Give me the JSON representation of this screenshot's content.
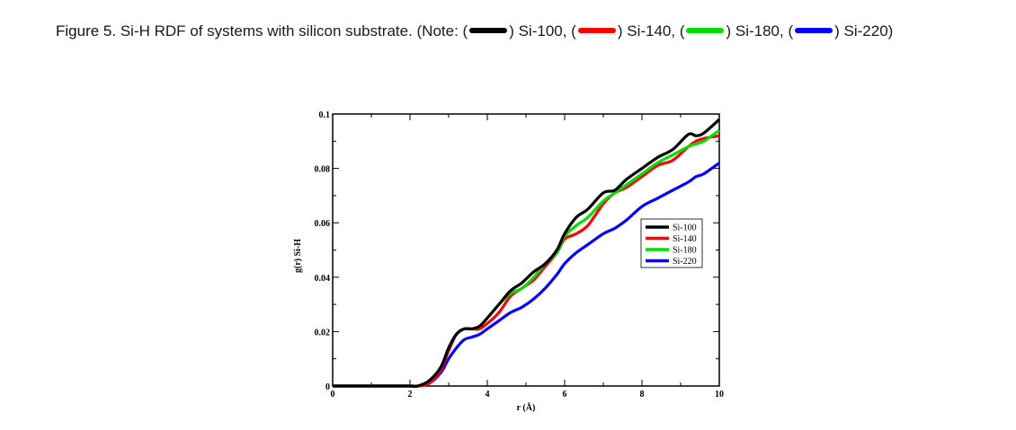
{
  "caption": {
    "label": "Figure 5.",
    "text": "Si-H RDF of systems with silicon substrate. (Note:",
    "items": [
      {
        "name": "Si-100",
        "color": "#000000"
      },
      {
        "name": "Si-140",
        "color": "#ff0000"
      },
      {
        "name": "Si-180",
        "color": "#00dd00"
      },
      {
        "name": "Si-220",
        "color": "#0000ff"
      }
    ]
  },
  "chart_data": {
    "type": "line",
    "xlabel": "r (Å)",
    "ylabel": "g(r) Si-H",
    "xlim": [
      0,
      10
    ],
    "ylim": [
      0,
      0.1
    ],
    "xticks": [
      "0",
      "2",
      "4",
      "6",
      "8",
      "10"
    ],
    "yticks": [
      "0",
      "0.02",
      "0.04",
      "0.06",
      "0.08",
      "0.1"
    ],
    "legend_position": "center-right",
    "x": [
      0,
      1,
      2,
      2.2,
      2.5,
      2.8,
      3.0,
      3.2,
      3.4,
      3.6,
      3.8,
      4.0,
      4.3,
      4.6,
      4.9,
      5.2,
      5.5,
      5.8,
      6.0,
      6.3,
      6.6,
      7.0,
      7.3,
      7.6,
      8.0,
      8.4,
      8.8,
      9.2,
      9.4,
      9.6,
      10.0
    ],
    "series": [
      {
        "name": "Si-100",
        "color": "#000000",
        "values": [
          0,
          0,
          0,
          0,
          0.002,
          0.007,
          0.014,
          0.019,
          0.021,
          0.021,
          0.022,
          0.025,
          0.03,
          0.035,
          0.038,
          0.042,
          0.045,
          0.05,
          0.056,
          0.062,
          0.065,
          0.071,
          0.072,
          0.076,
          0.08,
          0.084,
          0.087,
          0.0925,
          0.092,
          0.093,
          0.098
        ]
      },
      {
        "name": "Si-140",
        "color": "#ff0000",
        "values": [
          0,
          0,
          0,
          0,
          0.001,
          0.006,
          0.013,
          0.019,
          0.021,
          0.021,
          0.021,
          0.023,
          0.027,
          0.033,
          0.036,
          0.039,
          0.044,
          0.049,
          0.054,
          0.056,
          0.059,
          0.067,
          0.071,
          0.073,
          0.077,
          0.081,
          0.083,
          0.088,
          0.09,
          0.091,
          0.092
        ]
      },
      {
        "name": "Si-180",
        "color": "#00dd00",
        "values": [
          0,
          0,
          0,
          0,
          0.002,
          0.007,
          0.014,
          0.019,
          0.021,
          0.021,
          0.022,
          0.025,
          0.03,
          0.034,
          0.036,
          0.04,
          0.045,
          0.049,
          0.055,
          0.059,
          0.062,
          0.068,
          0.071,
          0.074,
          0.078,
          0.082,
          0.085,
          0.088,
          0.089,
          0.09,
          0.094
        ]
      },
      {
        "name": "Si-220",
        "color": "#0000ff",
        "values": [
          0,
          0,
          0,
          0,
          0.001,
          0.005,
          0.01,
          0.014,
          0.017,
          0.018,
          0.019,
          0.021,
          0.024,
          0.027,
          0.029,
          0.032,
          0.036,
          0.041,
          0.045,
          0.049,
          0.052,
          0.056,
          0.058,
          0.061,
          0.066,
          0.069,
          0.072,
          0.075,
          0.077,
          0.078,
          0.082
        ]
      }
    ]
  }
}
